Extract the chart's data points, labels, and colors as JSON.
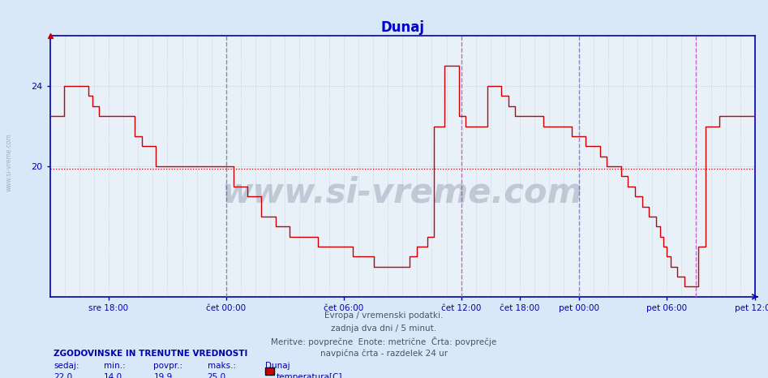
{
  "title": "Dunaj",
  "title_color": "#0000cc",
  "bg_color": "#d8e8f8",
  "plot_bg_color": "#e8f0f8",
  "line_color": "#cc0000",
  "avg_line_color": "#cc0000",
  "avg_line_value": 19.9,
  "grid_color_major": "#c0c8d8",
  "grid_color_minor": "#d0d8e8",
  "vline_color_midnight": "#8888bb",
  "vline_color_noon": "#cc66cc",
  "axis_color": "#0000aa",
  "tick_label_color": "#0000aa",
  "ylim": [
    13.5,
    26.5
  ],
  "yticks": [
    20,
    24
  ],
  "footer_color": "#445566",
  "watermark": "www.si-vreme.com",
  "watermark_color": "#334466",
  "watermark_alpha": 0.22,
  "footer_lines": [
    "Evropa / vremenski podatki.",
    "zadnja dva dni / 5 minut.",
    "Meritve: povprečne  Enote: metrične  Črta: povprečje",
    "navpična črta - razdelek 24 ur"
  ],
  "legend_title": "ZGODOVINSKE IN TRENUTNE VREDNOSTI",
  "legend_sedaj": "22,0",
  "legend_min": "14,0",
  "legend_povpr": "19,9",
  "legend_maks": "25,0",
  "legend_label": "Dunaj",
  "legend_sublabel": "temperatura[C]",
  "legend_color": "#cc0000",
  "x_tick_labels": [
    "sre 18:00",
    "čet 00:00",
    "čet 06:00",
    "čet 12:00",
    "čet 18:00",
    "pet 00:00",
    "pet 06:00",
    "pet 12:00"
  ],
  "x_tick_positions": [
    0.0833,
    0.25,
    0.4167,
    0.5833,
    0.6667,
    0.75,
    0.875,
    1.0
  ],
  "midnight_lines": [
    0.25,
    0.75
  ],
  "noon_lines": [
    0.5833,
    0.9167
  ],
  "temp_x": [
    0.0,
    0.01,
    0.02,
    0.035,
    0.05,
    0.055,
    0.06,
    0.07,
    0.075,
    0.08,
    0.09,
    0.1,
    0.11,
    0.12,
    0.13,
    0.14,
    0.15,
    0.16,
    0.18,
    0.2,
    0.21,
    0.22,
    0.23,
    0.24,
    0.25,
    0.26,
    0.28,
    0.3,
    0.32,
    0.34,
    0.36,
    0.38,
    0.395,
    0.41,
    0.43,
    0.445,
    0.46,
    0.47,
    0.48,
    0.49,
    0.5,
    0.51,
    0.52,
    0.535,
    0.545,
    0.555,
    0.56,
    0.57,
    0.58,
    0.59,
    0.6,
    0.61,
    0.62,
    0.63,
    0.64,
    0.65,
    0.66,
    0.6667,
    0.68,
    0.7,
    0.72,
    0.74,
    0.75,
    0.76,
    0.77,
    0.78,
    0.79,
    0.8,
    0.81,
    0.82,
    0.83,
    0.84,
    0.85,
    0.86,
    0.865,
    0.87,
    0.875,
    0.88,
    0.89,
    0.9,
    0.91,
    0.92,
    0.93,
    0.94,
    0.95,
    0.96,
    0.97,
    0.98,
    0.99,
    1.0
  ],
  "temp_y": [
    22.5,
    22.5,
    24.0,
    24.0,
    24.0,
    23.5,
    23.0,
    22.5,
    22.5,
    22.5,
    22.5,
    22.5,
    22.5,
    21.5,
    21.0,
    21.0,
    20.0,
    20.0,
    20.0,
    20.0,
    20.0,
    20.0,
    20.0,
    20.0,
    20.0,
    19.0,
    18.5,
    17.5,
    17.0,
    16.5,
    16.5,
    16.0,
    16.0,
    16.0,
    15.5,
    15.5,
    15.0,
    15.0,
    15.0,
    15.0,
    15.0,
    15.5,
    16.0,
    16.5,
    22.0,
    22.0,
    25.0,
    25.0,
    22.5,
    22.0,
    22.0,
    22.0,
    24.0,
    24.0,
    23.5,
    23.0,
    22.5,
    22.5,
    22.5,
    22.0,
    22.0,
    21.5,
    21.5,
    21.0,
    21.0,
    20.5,
    20.0,
    20.0,
    19.5,
    19.0,
    18.5,
    18.0,
    17.5,
    17.0,
    16.5,
    16.0,
    15.5,
    15.0,
    14.5,
    14.0,
    14.0,
    16.0,
    22.0,
    22.0,
    22.5,
    22.5,
    22.5,
    22.5,
    22.5,
    22.5
  ]
}
